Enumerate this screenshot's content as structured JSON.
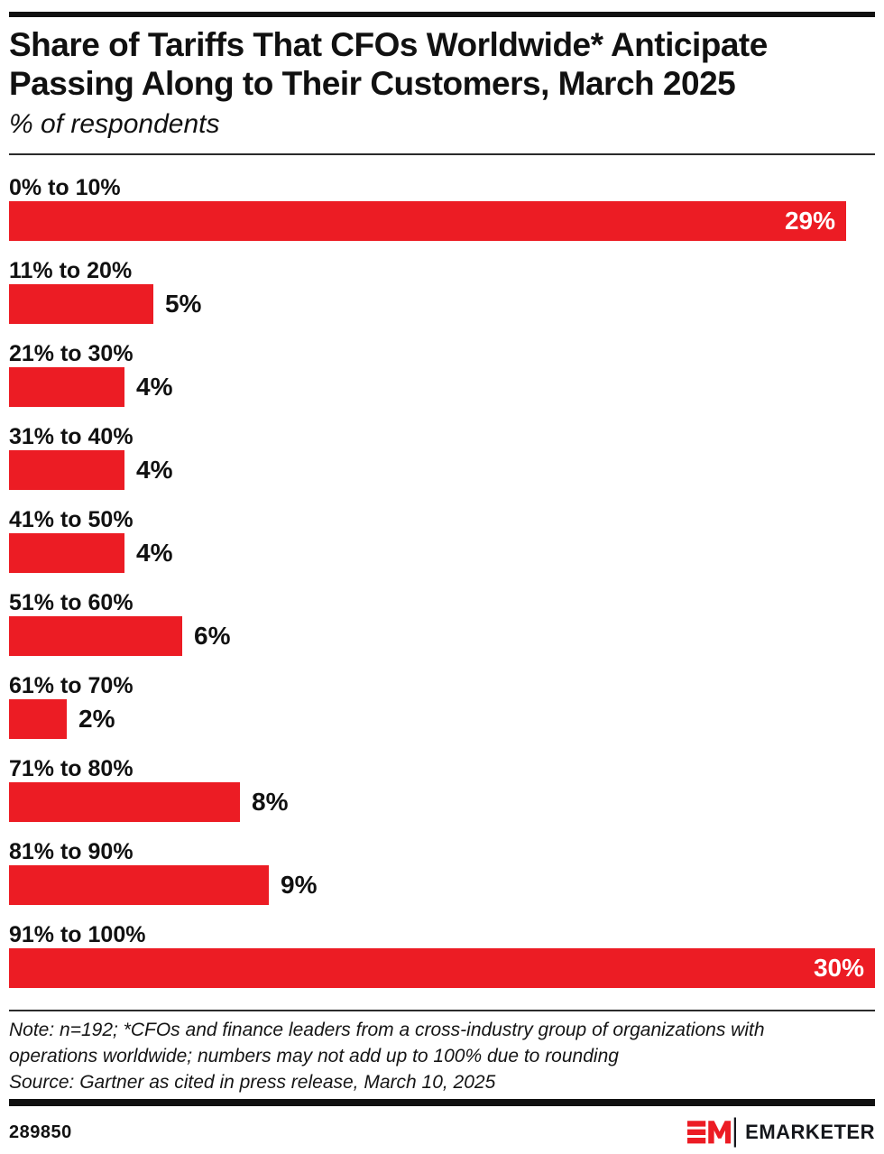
{
  "header": {
    "title": "Share of Tariffs That CFOs Worldwide* Anticipate Passing Along to Their Customers, March 2025",
    "subtitle": "% of respondents"
  },
  "chart_data": {
    "type": "bar",
    "orientation": "horizontal",
    "title": "Share of Tariffs That CFOs Worldwide* Anticipate Passing Along to Their Customers, March 2025",
    "subtitle": "% of respondents",
    "categories": [
      "0% to 10%",
      "11% to 20%",
      "21% to 30%",
      "31% to 40%",
      "41% to 50%",
      "51% to 60%",
      "61% to 70%",
      "71% to 80%",
      "81% to 90%",
      "91% to 100%"
    ],
    "values": [
      29,
      5,
      4,
      4,
      4,
      6,
      2,
      8,
      9,
      30
    ],
    "value_labels": [
      "29%",
      "5%",
      "4%",
      "4%",
      "4%",
      "6%",
      "2%",
      "8%",
      "9%",
      "30%"
    ],
    "label_position": [
      "inside",
      "outside",
      "outside",
      "outside",
      "outside",
      "outside",
      "outside",
      "outside",
      "outside",
      "inside"
    ],
    "xlim": [
      0,
      30
    ],
    "bar_color": "#EC1C24",
    "grid": "off",
    "legend": "none"
  },
  "footer": {
    "note_lines": [
      "Note: n=192; *CFOs and finance leaders from a cross-industry group of organizations with",
      "operations worldwide; numbers may not add up to 100% due to rounding"
    ],
    "source": "Source: Gartner as cited in press release, March 10, 2025",
    "chart_id": "289850",
    "brand_name": "EMARKETER"
  },
  "colors": {
    "accent_red": "#EC1C24",
    "bar_black": "#111111",
    "background": "#ffffff",
    "inside_label": "#ffffff"
  }
}
